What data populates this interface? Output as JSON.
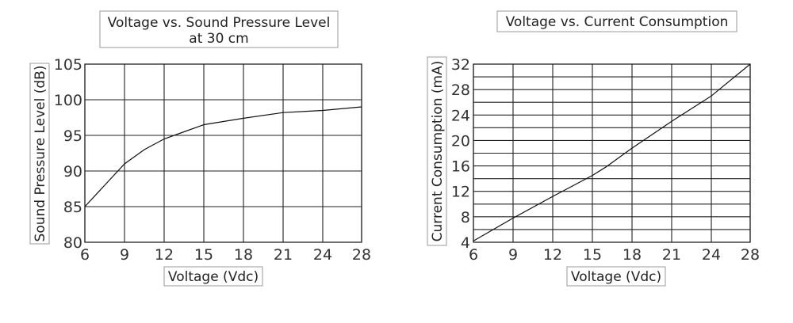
{
  "chart_data": [
    {
      "type": "line",
      "title": [
        "Voltage vs. Sound Pressure Level",
        "at 30 cm"
      ],
      "xlabel": "Voltage (Vdc)",
      "ylabel": "Sound Pressure Level (dB)",
      "xticks": [
        "6",
        "9",
        "12",
        "15",
        "18",
        "21",
        "24",
        "28"
      ],
      "xlim": [
        6,
        28
      ],
      "yticks": [
        "80",
        "85",
        "90",
        "95",
        "100",
        "105"
      ],
      "ylim": [
        80,
        105
      ],
      "grid": true,
      "series": [
        {
          "x": [
            6,
            7.5,
            9,
            10.5,
            12,
            13.5,
            15,
            18,
            21,
            24,
            28
          ],
          "y": [
            85,
            88,
            91,
            93,
            94.5,
            95.5,
            96.5,
            97.4,
            98.2,
            98.5,
            99
          ]
        }
      ]
    },
    {
      "type": "line",
      "title": [
        "Voltage vs. Current Consumption"
      ],
      "xlabel": "Voltage (Vdc)",
      "ylabel": "Current Consumption (mA)",
      "xticks": [
        "6",
        "9",
        "12",
        "15",
        "18",
        "21",
        "24",
        "28"
      ],
      "xlim": [
        6,
        28
      ],
      "yticks": [
        "4",
        "8",
        "12",
        "16",
        "20",
        "24",
        "28",
        "32"
      ],
      "ylim": [
        4,
        32
      ],
      "grid": true,
      "series": [
        {
          "x": [
            6,
            9,
            12,
            15,
            16,
            18,
            21,
            24,
            28
          ],
          "y": [
            4.2,
            7.8,
            11.2,
            14.5,
            15.8,
            18.8,
            23,
            27,
            32
          ]
        }
      ]
    }
  ]
}
